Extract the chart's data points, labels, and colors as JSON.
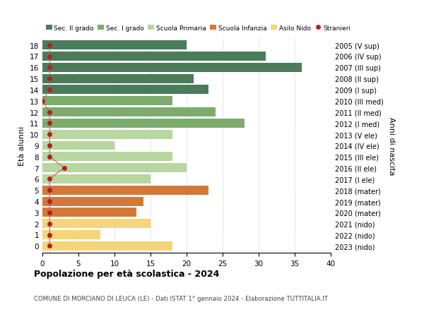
{
  "ages": [
    18,
    17,
    16,
    15,
    14,
    13,
    12,
    11,
    10,
    9,
    8,
    7,
    6,
    5,
    4,
    3,
    2,
    1,
    0
  ],
  "right_labels": [
    "2005 (V sup)",
    "2006 (IV sup)",
    "2007 (III sup)",
    "2008 (II sup)",
    "2009 (I sup)",
    "2010 (III med)",
    "2011 (II med)",
    "2012 (I med)",
    "2013 (V ele)",
    "2014 (IV ele)",
    "2015 (III ele)",
    "2016 (II ele)",
    "2017 (I ele)",
    "2018 (mater)",
    "2019 (mater)",
    "2020 (mater)",
    "2021 (nido)",
    "2022 (nido)",
    "2023 (nido)"
  ],
  "bar_values": [
    20,
    31,
    36,
    21,
    23,
    18,
    24,
    28,
    18,
    10,
    18,
    20,
    15,
    23,
    14,
    13,
    15,
    8,
    18
  ],
  "bar_colors": [
    "#4a7c59",
    "#4a7c59",
    "#4a7c59",
    "#4a7c59",
    "#4a7c59",
    "#7dab6e",
    "#7dab6e",
    "#7dab6e",
    "#b8d6a0",
    "#b8d6a0",
    "#b8d6a0",
    "#b8d6a0",
    "#b8d6a0",
    "#d4783a",
    "#d4783a",
    "#d4783a",
    "#f5d57a",
    "#f5d57a",
    "#f5d57a"
  ],
  "stranieri_values": [
    1,
    1,
    1,
    1,
    1,
    0,
    1,
    1,
    1,
    1,
    1,
    3,
    1,
    1,
    1,
    1,
    1,
    1,
    1
  ],
  "legend_labels": [
    "Sec. II grado",
    "Sec. I grado",
    "Scuola Primaria",
    "Scuola Infanzia",
    "Asilo Nido",
    "Stranieri"
  ],
  "legend_colors": [
    "#4a7c59",
    "#7dab6e",
    "#b8d6a0",
    "#d4783a",
    "#f5d57a",
    "#b22222"
  ],
  "title": "Popolazione per età scolastica - 2024",
  "subtitle": "COMUNE DI MORCIANO DI LEUCA (LE) - Dati ISTAT 1° gennaio 2024 - Elaborazione TUTTITALIA.IT",
  "ylabel_left": "Età alunni",
  "ylabel_right": "Anni di nascita",
  "xlim": [
    0,
    40
  ],
  "xticks": [
    0,
    5,
    10,
    15,
    20,
    25,
    30,
    35,
    40
  ],
  "bg_color": "#ffffff",
  "grid_color": "#cccccc",
  "bar_height": 0.82,
  "dot_color": "#b22222",
  "line_color": "#c06060"
}
